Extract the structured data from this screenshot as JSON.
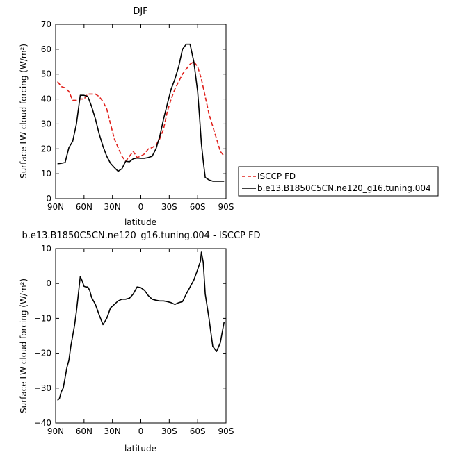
{
  "chart_data": [
    {
      "type": "line",
      "title": "DJF",
      "xlabel": "latitude",
      "ylabel": "Surface LW cloud forcing (W/m²)",
      "xlim": [
        90,
        -90
      ],
      "ylim": [
        0,
        70
      ],
      "xticks": [
        90,
        60,
        30,
        0,
        -30,
        -60,
        -90
      ],
      "xtick_labels": [
        "90N",
        "60N",
        "30N",
        "0",
        "30S",
        "60S",
        "90S"
      ],
      "yticks": [
        0,
        10,
        20,
        30,
        40,
        50,
        60,
        70
      ],
      "ytick_labels": [
        "0",
        "10",
        "20",
        "30",
        "40",
        "50",
        "60",
        "70"
      ],
      "legend_position": "right",
      "series": [
        {
          "name": "ISCCP FD",
          "color": "#e0201b",
          "dash": "dashed",
          "x": [
            88,
            84,
            80,
            76,
            72,
            68,
            64,
            60,
            56,
            52,
            48,
            44,
            40,
            36,
            32,
            28,
            24,
            20,
            16,
            12,
            8,
            4,
            0,
            -4,
            -8,
            -12,
            -16,
            -20,
            -24,
            -28,
            -32,
            -36,
            -40,
            -44,
            -48,
            -52,
            -56,
            -60,
            -64,
            -68,
            -72,
            -76,
            -80,
            -84,
            -88
          ],
          "y": [
            47,
            45,
            44.5,
            43,
            39.5,
            39.5,
            40,
            40,
            42,
            42,
            42,
            41,
            39,
            36,
            30,
            24,
            20.5,
            17,
            15,
            17,
            19,
            16.5,
            17,
            18,
            20,
            20.5,
            21.5,
            24,
            28,
            35,
            40,
            44,
            47,
            50,
            52,
            54,
            55,
            53,
            48,
            41,
            34,
            29,
            24,
            19,
            17
          ]
        },
        {
          "name": "b.e13.B1850C5CN.ne120_g16.tuning.004",
          "color": "#000000",
          "dash": "solid",
          "x": [
            88,
            84,
            80,
            76,
            72,
            68,
            64,
            60,
            56,
            52,
            48,
            44,
            40,
            36,
            32,
            28,
            24,
            20,
            16,
            12,
            8,
            4,
            0,
            -4,
            -8,
            -12,
            -16,
            -20,
            -24,
            -28,
            -32,
            -36,
            -40,
            -44,
            -48,
            -52,
            -56,
            -60,
            -62,
            -64,
            -66,
            -68,
            -72,
            -76,
            -80,
            -84,
            -88
          ],
          "y": [
            14,
            14.2,
            14.5,
            20.5,
            23,
            30,
            41.5,
            41.5,
            41,
            37,
            32,
            26,
            21,
            17,
            14.2,
            12.5,
            11,
            12,
            15,
            14.8,
            16,
            16.3,
            16.2,
            16.2,
            16.5,
            17,
            20,
            25,
            32,
            38,
            44,
            48,
            53,
            60,
            62,
            62,
            55,
            43,
            33,
            22,
            15,
            8.5,
            7.5,
            7,
            7,
            7,
            7
          ]
        }
      ]
    },
    {
      "type": "line",
      "title": "b.e13.B1850C5CN.ne120_g16.tuning.004 - ISCCP FD",
      "xlabel": "latitude",
      "ylabel": "Surface LW cloud forcing (W/m²)",
      "xlim": [
        90,
        -90
      ],
      "ylim": [
        -40,
        10
      ],
      "xticks": [
        90,
        60,
        30,
        0,
        -30,
        -60,
        -90
      ],
      "xtick_labels": [
        "90N",
        "60N",
        "30N",
        "0",
        "30S",
        "60S",
        "90S"
      ],
      "yticks": [
        -40,
        -30,
        -20,
        -10,
        0,
        10
      ],
      "ytick_labels": [
        "−40",
        "−30",
        "−20",
        "−10",
        "0",
        "10"
      ],
      "series": [
        {
          "color": "#000000",
          "dash": "solid",
          "x": [
            88,
            86,
            84,
            82,
            80,
            78,
            76,
            74,
            72,
            70,
            68,
            66,
            64,
            62,
            60,
            58,
            56,
            54,
            52,
            50,
            48,
            44,
            40,
            36,
            32,
            28,
            24,
            20,
            16,
            12,
            8,
            4,
            0,
            -4,
            -8,
            -12,
            -16,
            -20,
            -24,
            -28,
            -32,
            -36,
            -40,
            -44,
            -48,
            -52,
            -56,
            -60,
            -63,
            -64,
            -66,
            -68,
            -72,
            -76,
            -80,
            -84,
            -88
          ],
          "y": [
            -33.5,
            -33,
            -31,
            -30,
            -27,
            -24,
            -22,
            -18,
            -15,
            -12,
            -8,
            -3,
            2,
            0.8,
            -0.8,
            -1,
            -1,
            -2,
            -4,
            -5,
            -6,
            -9,
            -11.8,
            -10,
            -7,
            -6,
            -5,
            -4.5,
            -4.5,
            -4.2,
            -3,
            -1,
            -1.2,
            -2,
            -3.5,
            -4.5,
            -4.8,
            -5,
            -5,
            -5.2,
            -5.5,
            -6,
            -5.5,
            -5.2,
            -3,
            -1,
            1,
            4,
            6.5,
            9,
            6,
            -3,
            -10,
            -18,
            -19.5,
            -17,
            -11
          ]
        }
      ]
    }
  ]
}
